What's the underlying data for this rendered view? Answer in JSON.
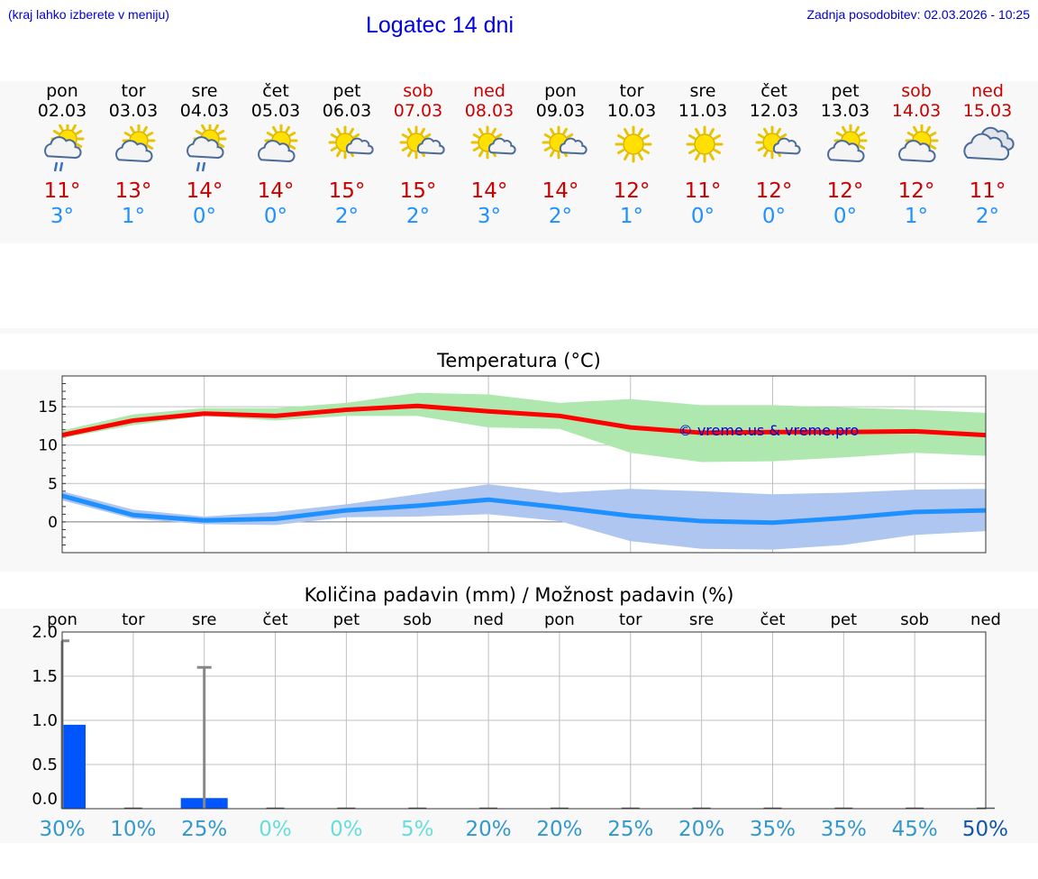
{
  "header": {
    "hint": "(kraj lahko izberete v meniju)",
    "title": "Logatec 14 dni",
    "updated": "Zadnja posodobitev: 02.03.2026 - 10:25"
  },
  "days": [
    {
      "name": "pon",
      "date": "02.03",
      "weekend": false,
      "icon": "sun-cloud-rain-icon",
      "max": "11°",
      "min": "3°"
    },
    {
      "name": "tor",
      "date": "03.03",
      "weekend": false,
      "icon": "sun-cloud-icon",
      "max": "13°",
      "min": "1°"
    },
    {
      "name": "sre",
      "date": "04.03",
      "weekend": false,
      "icon": "sun-cloud-rain-icon",
      "max": "14°",
      "min": "0°"
    },
    {
      "name": "čet",
      "date": "05.03",
      "weekend": false,
      "icon": "sun-cloud-icon",
      "max": "14°",
      "min": "0°"
    },
    {
      "name": "pet",
      "date": "06.03",
      "weekend": false,
      "icon": "sun-small-cloud-icon",
      "max": "15°",
      "min": "2°"
    },
    {
      "name": "sob",
      "date": "07.03",
      "weekend": true,
      "icon": "sun-small-cloud-icon",
      "max": "15°",
      "min": "2°"
    },
    {
      "name": "ned",
      "date": "08.03",
      "weekend": true,
      "icon": "sun-small-cloud-icon",
      "max": "14°",
      "min": "3°"
    },
    {
      "name": "pon",
      "date": "09.03",
      "weekend": false,
      "icon": "sun-small-cloud-icon",
      "max": "14°",
      "min": "2°"
    },
    {
      "name": "tor",
      "date": "10.03",
      "weekend": false,
      "icon": "sun-icon",
      "max": "12°",
      "min": "1°"
    },
    {
      "name": "sre",
      "date": "11.03",
      "weekend": false,
      "icon": "sun-icon",
      "max": "11°",
      "min": "0°"
    },
    {
      "name": "čet",
      "date": "12.03",
      "weekend": false,
      "icon": "sun-small-cloud-icon",
      "max": "12°",
      "min": "0°"
    },
    {
      "name": "pet",
      "date": "13.03",
      "weekend": false,
      "icon": "sun-cloud-icon",
      "max": "12°",
      "min": "0°"
    },
    {
      "name": "sob",
      "date": "14.03",
      "weekend": true,
      "icon": "sun-cloud-icon",
      "max": "12°",
      "min": "1°"
    },
    {
      "name": "ned",
      "date": "15.03",
      "weekend": true,
      "icon": "clouds-icon",
      "max": "11°",
      "min": "2°"
    }
  ],
  "colors": {
    "max_line": "#ff0000",
    "max_band": "#aee8ae",
    "min_line": "#1e90ff",
    "min_band": "#aec6f0",
    "precip_bar": "#0055ff",
    "error_bar": "#888888"
  },
  "chart_data": [
    {
      "type": "line",
      "title": "Temperatura (°C)",
      "watermark": "© vreme.us & vreme.pro",
      "x": [
        0,
        1,
        2,
        3,
        4,
        5,
        6,
        7,
        8,
        9,
        10,
        11,
        12,
        13
      ],
      "ylim": [
        -4,
        19
      ],
      "yticks": [
        15,
        10,
        5,
        0
      ],
      "series": [
        {
          "name": "max",
          "values": [
            11.3,
            13.2,
            14.1,
            13.8,
            14.6,
            15.1,
            14.4,
            13.8,
            12.3,
            11.6,
            11.7,
            11.7,
            11.8,
            11.3
          ],
          "band_upper": [
            11.9,
            14.0,
            14.8,
            14.8,
            15.5,
            16.8,
            16.6,
            15.5,
            16.0,
            15.2,
            15.2,
            14.9,
            14.6,
            14.2
          ],
          "band_lower": [
            10.9,
            12.6,
            13.8,
            13.2,
            13.8,
            13.8,
            12.3,
            12.1,
            9.0,
            7.8,
            7.9,
            8.4,
            9.0,
            8.6
          ]
        },
        {
          "name": "min",
          "values": [
            3.4,
            0.9,
            0.2,
            0.4,
            1.5,
            2.1,
            2.9,
            1.9,
            0.8,
            0.1,
            -0.1,
            0.5,
            1.3,
            1.5
          ],
          "band_upper": [
            4.0,
            1.6,
            0.7,
            1.3,
            2.3,
            3.6,
            4.9,
            3.8,
            4.3,
            4.0,
            3.6,
            3.8,
            4.2,
            4.3
          ],
          "band_lower": [
            2.8,
            0.4,
            -0.3,
            -0.4,
            0.6,
            0.7,
            1.0,
            0.1,
            -2.5,
            -3.5,
            -3.6,
            -3.0,
            -1.7,
            -1.2
          ]
        }
      ]
    },
    {
      "type": "bar",
      "title": "Količina padavin (mm) / Možnost padavin (%)",
      "categories": [
        "pon",
        "tor",
        "sre",
        "čet",
        "pet",
        "sob",
        "ned",
        "pon",
        "tor",
        "sre",
        "čet",
        "pet",
        "sob",
        "ned"
      ],
      "values": [
        0.95,
        0,
        0.12,
        0,
        0,
        0,
        0,
        0,
        0,
        0,
        0,
        0,
        0,
        0
      ],
      "error_max": [
        1.9,
        0,
        1.6,
        0,
        0,
        0,
        0,
        0,
        0,
        0,
        0,
        0,
        0,
        0
      ],
      "chance": [
        "30%",
        "10%",
        "25%",
        "0%",
        "0%",
        "5%",
        "20%",
        "20%",
        "25%",
        "20%",
        "35%",
        "35%",
        "45%",
        "50%"
      ],
      "chance_colors": [
        "#3399cc",
        "#3399cc",
        "#3399cc",
        "#66dddd",
        "#66dddd",
        "#66dddd",
        "#3399cc",
        "#3399cc",
        "#3399cc",
        "#3399cc",
        "#3399cc",
        "#3399cc",
        "#3399cc",
        "#1155aa"
      ],
      "ylim": [
        0,
        2.0
      ],
      "yticks": [
        "2.0",
        "1.5",
        "1.0",
        "0.5",
        "0.0"
      ]
    }
  ]
}
